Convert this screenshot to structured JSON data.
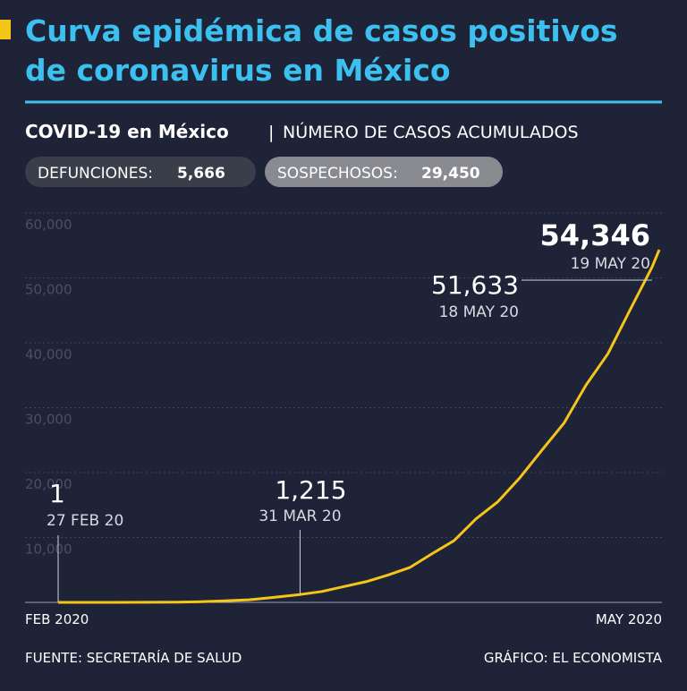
{
  "chart_data": {
    "type": "line",
    "title_lines": [
      "Curva epidémica de casos positivos",
      "de coronavirus en México"
    ],
    "subtitle": "COVID-19 en México",
    "subtitle_note": "NÚMERO DE CASOS ACUMULADOS",
    "badges": [
      {
        "label": "DEFUNCIONES:",
        "value": "5,666"
      },
      {
        "label": "SOSPECHOSOS:",
        "value": "29,450"
      }
    ],
    "source": "FUENTE: SECRETARÍA DE SALUD",
    "credit": "GRÁFICO: EL ECONOMISTA",
    "color": "#f5c518",
    "x": [
      "2020-02-27",
      "2020-03-05",
      "2020-03-10",
      "2020-03-14",
      "2020-03-17",
      "2020-03-20",
      "2020-03-24",
      "2020-03-27",
      "2020-03-31",
      "2020-04-03",
      "2020-04-06",
      "2020-04-09",
      "2020-04-12",
      "2020-04-15",
      "2020-04-18",
      "2020-04-21",
      "2020-04-24",
      "2020-04-27",
      "2020-04-30",
      "2020-05-03",
      "2020-05-06",
      "2020-05-09",
      "2020-05-12",
      "2020-05-15",
      "2020-05-18",
      "2020-05-19"
    ],
    "values": [
      1,
      5,
      7,
      26,
      82,
      203,
      405,
      717,
      1215,
      1688,
      2439,
      3181,
      4219,
      5399,
      7497,
      9501,
      12872,
      15529,
      19224,
      23471,
      27634,
      33460,
      38324,
      45032,
      51633,
      54346
    ],
    "value_labels": [
      "1",
      null,
      null,
      null,
      null,
      null,
      null,
      null,
      "1,215",
      null,
      null,
      null,
      null,
      null,
      null,
      null,
      null,
      null,
      null,
      null,
      null,
      null,
      null,
      null,
      "51,633",
      "54,346"
    ],
    "date_labels": [
      "27 FEB 20",
      null,
      null,
      null,
      null,
      null,
      null,
      null,
      "31 MAR 20",
      null,
      null,
      null,
      null,
      null,
      null,
      null,
      null,
      null,
      null,
      null,
      null,
      null,
      null,
      null,
      "18 MAY 20",
      "19 MAY 20"
    ],
    "xlim": [
      "2020-02-27",
      "2020-05-19"
    ],
    "xticks": [
      {
        "value": "2020-02-27",
        "label": "FEB 2020"
      },
      {
        "value": "2020-05-19",
        "label": "MAY 2020"
      }
    ],
    "ylim": [
      0,
      60000
    ],
    "yticks": [
      {
        "value": 10000,
        "label": "10,000"
      },
      {
        "value": 20000,
        "label": "20,000"
      },
      {
        "value": 30000,
        "label": "30,000"
      },
      {
        "value": 40000,
        "label": "40,000"
      },
      {
        "value": 50000,
        "label": "50,000"
      },
      {
        "value": 60000,
        "label": "60,000"
      }
    ],
    "grid": true
  }
}
